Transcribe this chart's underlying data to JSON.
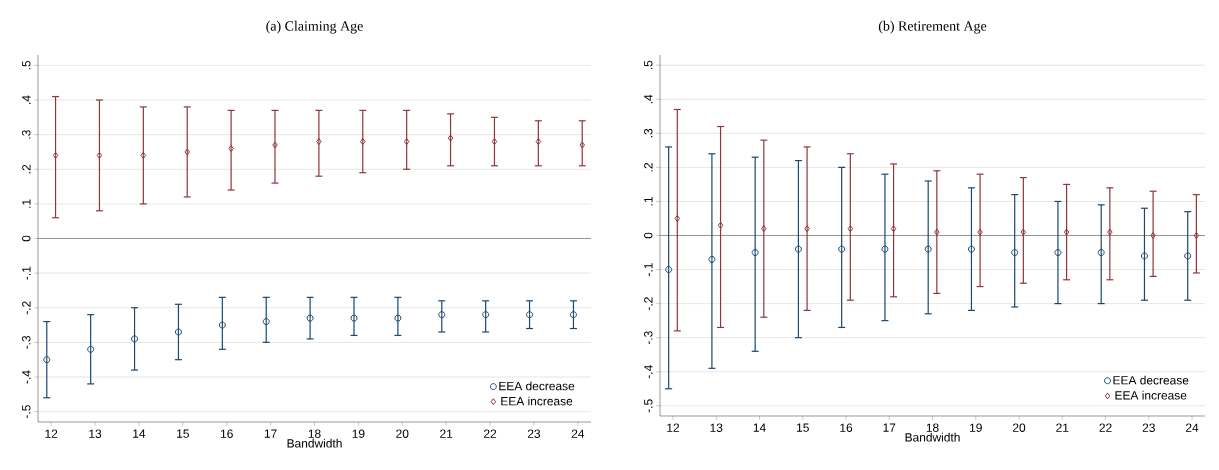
{
  "chart_data": [
    {
      "type": "scatter",
      "title": "(a) Claiming Age",
      "xlabel": "Bandwidth",
      "xlim": [
        11.7,
        24.3
      ],
      "xticks": [
        12,
        13,
        14,
        15,
        16,
        17,
        18,
        19,
        20,
        21,
        22,
        23,
        24
      ],
      "ylim": [
        -0.53,
        0.53
      ],
      "yticks": [
        {
          "value": -0.5,
          "label": "-.5"
        },
        {
          "value": -0.4,
          "label": "-.4"
        },
        {
          "value": -0.3,
          "label": "-.3"
        },
        {
          "value": -0.2,
          "label": "-.2"
        },
        {
          "value": -0.1,
          "label": "-.1"
        },
        0,
        {
          "value": 0.1,
          "label": ".1"
        },
        {
          "value": 0.2,
          "label": ".2"
        },
        {
          "value": 0.3,
          "label": ".3"
        },
        {
          "value": 0.4,
          "label": ".4"
        },
        {
          "value": 0.5,
          "label": ".5"
        }
      ],
      "grid": "y",
      "legend": "bottom right",
      "ref_lines": [
        {
          "axis": "y",
          "value": 0,
          "color": "#808080"
        }
      ],
      "series": [
        {
          "name": "EEA decrease",
          "color": "#1a476f",
          "marker": "circle",
          "x": [
            11.9,
            12.9,
            13.9,
            14.9,
            15.9,
            16.9,
            17.9,
            18.9,
            19.9,
            20.9,
            21.9,
            22.9,
            23.9
          ],
          "values": [
            -0.35,
            -0.32,
            -0.29,
            -0.27,
            -0.25,
            -0.24,
            -0.23,
            -0.23,
            -0.23,
            -0.22,
            -0.22,
            -0.22,
            -0.22
          ],
          "errors": [
            [
              -0.46,
              -0.24
            ],
            [
              -0.42,
              -0.22
            ],
            [
              -0.38,
              -0.2
            ],
            [
              -0.35,
              -0.19
            ],
            [
              -0.32,
              -0.17
            ],
            [
              -0.3,
              -0.17
            ],
            [
              -0.29,
              -0.17
            ],
            [
              -0.28,
              -0.17
            ],
            [
              -0.28,
              -0.17
            ],
            [
              -0.27,
              -0.18
            ],
            [
              -0.27,
              -0.18
            ],
            [
              -0.26,
              -0.18
            ],
            [
              -0.26,
              -0.18
            ]
          ]
        },
        {
          "name": "EEA increase",
          "color": "#90353b",
          "marker": "diamond",
          "x": [
            12.1,
            13.1,
            14.1,
            15.1,
            16.1,
            17.1,
            18.1,
            19.1,
            20.1,
            21.1,
            22.1,
            23.1,
            24.1
          ],
          "values": [
            0.24,
            0.24,
            0.24,
            0.25,
            0.26,
            0.27,
            0.28,
            0.28,
            0.28,
            0.29,
            0.28,
            0.28,
            0.27
          ],
          "errors": [
            [
              0.06,
              0.41
            ],
            [
              0.08,
              0.4
            ],
            [
              0.1,
              0.38
            ],
            [
              0.12,
              0.38
            ],
            [
              0.14,
              0.37
            ],
            [
              0.16,
              0.37
            ],
            [
              0.18,
              0.37
            ],
            [
              0.19,
              0.37
            ],
            [
              0.2,
              0.37
            ],
            [
              0.21,
              0.36
            ],
            [
              0.21,
              0.35
            ],
            [
              0.21,
              0.34
            ],
            [
              0.21,
              0.34
            ]
          ]
        }
      ]
    },
    {
      "type": "scatter",
      "title": "(b) Retirement Age",
      "xlabel": "Bandwidth",
      "xlim": [
        11.7,
        24.3
      ],
      "xticks": [
        12,
        13,
        14,
        15,
        16,
        17,
        18,
        19,
        20,
        21,
        22,
        23,
        24
      ],
      "ylim": [
        -0.53,
        0.53
      ],
      "yticks": [
        {
          "value": -0.5,
          "label": "-.5"
        },
        {
          "value": -0.4,
          "label": "-.4"
        },
        {
          "value": -0.3,
          "label": "-.3"
        },
        {
          "value": -0.2,
          "label": "-.2"
        },
        {
          "value": -0.1,
          "label": "-.1"
        },
        0,
        {
          "value": 0.1,
          "label": ".1"
        },
        {
          "value": 0.2,
          "label": ".2"
        },
        {
          "value": 0.3,
          "label": ".3"
        },
        {
          "value": 0.4,
          "label": ".4"
        },
        {
          "value": 0.5,
          "label": ".5"
        }
      ],
      "grid": "y",
      "legend": "bottom right",
      "ref_lines": [
        {
          "axis": "y",
          "value": 0,
          "color": "#808080"
        }
      ],
      "series": [
        {
          "name": "EEA decrease",
          "color": "#1a476f",
          "marker": "circle",
          "x": [
            11.9,
            12.9,
            13.9,
            14.9,
            15.9,
            16.9,
            17.9,
            18.9,
            19.9,
            20.9,
            21.9,
            22.9,
            23.9
          ],
          "values": [
            -0.1,
            -0.07,
            -0.05,
            -0.04,
            -0.04,
            -0.04,
            -0.04,
            -0.04,
            -0.05,
            -0.05,
            -0.05,
            -0.06,
            -0.06
          ],
          "errors": [
            [
              -0.45,
              0.26
            ],
            [
              -0.39,
              0.24
            ],
            [
              -0.34,
              0.23
            ],
            [
              -0.3,
              0.22
            ],
            [
              -0.27,
              0.2
            ],
            [
              -0.25,
              0.18
            ],
            [
              -0.23,
              0.16
            ],
            [
              -0.22,
              0.14
            ],
            [
              -0.21,
              0.12
            ],
            [
              -0.2,
              0.1
            ],
            [
              -0.2,
              0.09
            ],
            [
              -0.19,
              0.08
            ],
            [
              -0.19,
              0.07
            ]
          ]
        },
        {
          "name": "EEA increase",
          "color": "#90353b",
          "marker": "diamond",
          "x": [
            12.1,
            13.1,
            14.1,
            15.1,
            16.1,
            17.1,
            18.1,
            19.1,
            20.1,
            21.1,
            22.1,
            23.1,
            24.1
          ],
          "values": [
            0.05,
            0.03,
            0.02,
            0.02,
            0.02,
            0.02,
            0.01,
            0.01,
            0.01,
            0.01,
            0.01,
            0.0,
            0.0
          ],
          "errors": [
            [
              -0.28,
              0.37
            ],
            [
              -0.27,
              0.32
            ],
            [
              -0.24,
              0.28
            ],
            [
              -0.22,
              0.26
            ],
            [
              -0.19,
              0.24
            ],
            [
              -0.18,
              0.21
            ],
            [
              -0.17,
              0.19
            ],
            [
              -0.15,
              0.18
            ],
            [
              -0.14,
              0.17
            ],
            [
              -0.13,
              0.15
            ],
            [
              -0.13,
              0.14
            ],
            [
              -0.12,
              0.13
            ],
            [
              -0.11,
              0.12
            ]
          ]
        }
      ]
    }
  ]
}
